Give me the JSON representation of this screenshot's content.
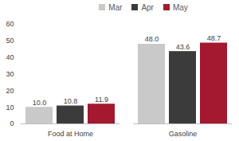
{
  "chart_data": {
    "type": "bar",
    "categories": [
      "Food at Home",
      "Gasoline"
    ],
    "series": [
      {
        "name": "Mar",
        "color": "#c9c9c9",
        "values": [
          10.0,
          48.0
        ],
        "value_labels": [
          "10.0",
          "48.0"
        ]
      },
      {
        "name": "Apr",
        "color": "#3b3b3b",
        "values": [
          10.8,
          43.6
        ],
        "value_labels": [
          "10.8",
          "43.6"
        ]
      },
      {
        "name": "May",
        "color": "#a3192f",
        "values": [
          11.9,
          48.7
        ],
        "value_labels": [
          "11.9",
          "48.7"
        ]
      }
    ],
    "ylim": [
      0,
      60
    ],
    "yticks": [
      0,
      10,
      20,
      30,
      40,
      50,
      60
    ],
    "grid": false,
    "legend": "top",
    "data_labels": true
  }
}
